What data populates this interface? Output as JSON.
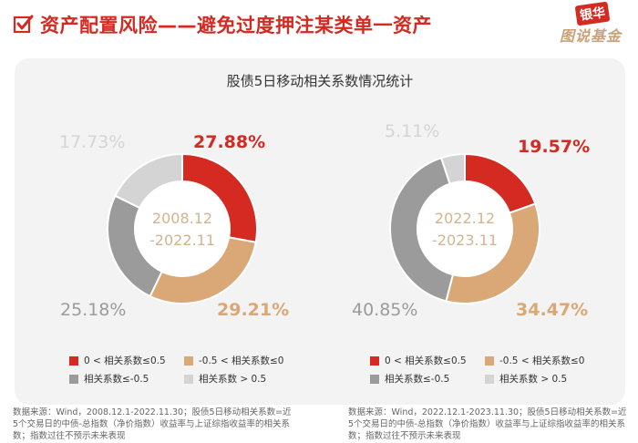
{
  "header": {
    "title": "资产配置风险——避免过度押注某类单一资产",
    "logo_top": "银华",
    "logo_bottom": "图说基金"
  },
  "colors": {
    "red": "#d42a22",
    "tan": "#d9a876",
    "gray": "#9b9b9b",
    "light": "#d4d4d4",
    "center_text": "#d4b38f"
  },
  "chart_data": [
    {
      "type": "pie",
      "title": "股债5日移动相关系数情况统计",
      "center_label": [
        "2008.12",
        "-2022.11"
      ],
      "slices": [
        {
          "category": "0 < 相关系数≤0.5",
          "value": 27.88,
          "label": "27.88%"
        },
        {
          "category": "-0.5 < 相关系数≤0",
          "value": 29.21,
          "label": "29.21%"
        },
        {
          "category": "相关系数≤-0.5",
          "value": 25.18,
          "label": "25.18%"
        },
        {
          "category": "相关系数 > 0.5",
          "value": 17.73,
          "label": "17.73%"
        }
      ]
    },
    {
      "type": "pie",
      "title": "股债5日移动相关系数情况统计",
      "center_label": [
        "2022.12",
        "-2023.11"
      ],
      "slices": [
        {
          "category": "0 < 相关系数≤0.5",
          "value": 19.57,
          "label": "19.57%"
        },
        {
          "category": "-0.5 < 相关系数≤0",
          "value": 34.47,
          "label": "34.47%"
        },
        {
          "category": "相关系数≤-0.5",
          "value": 40.85,
          "label": "40.85%"
        },
        {
          "category": "相关系数 > 0.5",
          "value": 5.11,
          "label": "5.11%"
        }
      ]
    }
  ],
  "legend": {
    "items": [
      "0 < 相关系数≤0.5",
      "-0.5 < 相关系数≤0",
      "相关系数≤-0.5",
      "相关系数 > 0.5"
    ]
  },
  "notes": [
    "数据来源：Wind，2008.12.1-2022.11.30；股债5日移动相关系数=近5个交易日的中债-总指数（净价指数）收益率与上证综指收益率的相关系数；指数过往不预示未来表现",
    "数据来源：Wind，2022.12.1-2023.11.30；股债5日移动相关系数=近5个交易日的中债-总指数（净价指数）收益率与上证综指收益率的相关系数；指数过往不预示未来表现"
  ]
}
